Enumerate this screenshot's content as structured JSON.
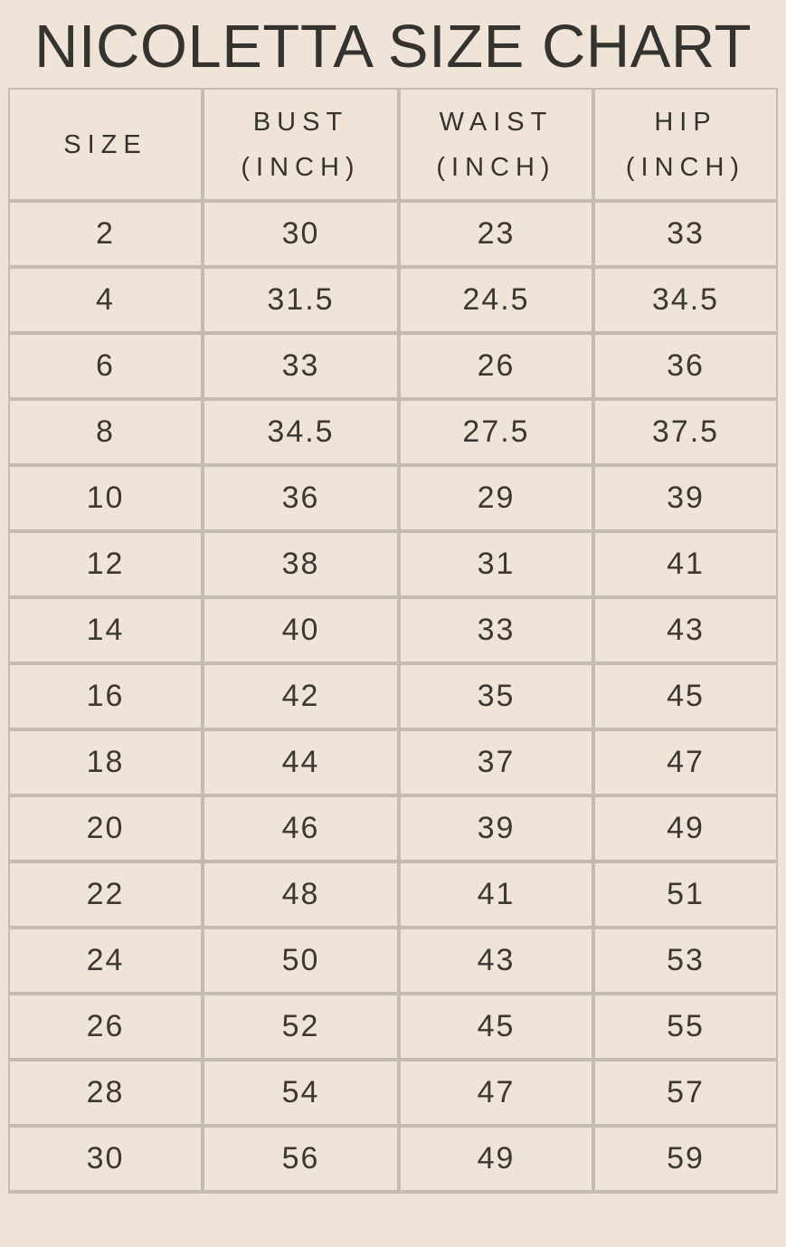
{
  "title": "NICOLETTA SIZE CHART",
  "colors": {
    "background": "#f0e4d8",
    "grid": "#c4bbb1",
    "text": "#3b3833",
    "title": "#35332f"
  },
  "size_chart": {
    "columns": [
      {
        "name": "size",
        "lines": [
          "SIZE"
        ]
      },
      {
        "name": "bust",
        "lines": [
          "BUST",
          "(INCH)"
        ]
      },
      {
        "name": "waist",
        "lines": [
          "WAIST",
          "(INCH)"
        ]
      },
      {
        "name": "hip",
        "lines": [
          "HIP",
          "(INCH)"
        ]
      }
    ],
    "rows": [
      [
        "2",
        "30",
        "23",
        "33"
      ],
      [
        "4",
        "31.5",
        "24.5",
        "34.5"
      ],
      [
        "6",
        "33",
        "26",
        "36"
      ],
      [
        "8",
        "34.5",
        "27.5",
        "37.5"
      ],
      [
        "10",
        "36",
        "29",
        "39"
      ],
      [
        "12",
        "38",
        "31",
        "41"
      ],
      [
        "14",
        "40",
        "33",
        "43"
      ],
      [
        "16",
        "42",
        "35",
        "45"
      ],
      [
        "18",
        "44",
        "37",
        "47"
      ],
      [
        "20",
        "46",
        "39",
        "49"
      ],
      [
        "22",
        "48",
        "41",
        "51"
      ],
      [
        "24",
        "50",
        "43",
        "53"
      ],
      [
        "26",
        "52",
        "45",
        "55"
      ],
      [
        "28",
        "54",
        "47",
        "57"
      ],
      [
        "30",
        "56",
        "49",
        "59"
      ]
    ]
  },
  "chart_data": {
    "type": "table",
    "title": "NICOLETTA SIZE CHART",
    "columns": [
      "SIZE",
      "BUST (INCH)",
      "WAIST (INCH)",
      "HIP (INCH)"
    ],
    "rows": [
      [
        2,
        30,
        23,
        33
      ],
      [
        4,
        31.5,
        24.5,
        34.5
      ],
      [
        6,
        33,
        26,
        36
      ],
      [
        8,
        34.5,
        27.5,
        37.5
      ],
      [
        10,
        36,
        29,
        39
      ],
      [
        12,
        38,
        31,
        41
      ],
      [
        14,
        40,
        33,
        43
      ],
      [
        16,
        42,
        35,
        45
      ],
      [
        18,
        44,
        37,
        47
      ],
      [
        20,
        46,
        39,
        49
      ],
      [
        22,
        48,
        41,
        51
      ],
      [
        24,
        50,
        43,
        53
      ],
      [
        26,
        52,
        45,
        55
      ],
      [
        28,
        54,
        47,
        57
      ],
      [
        30,
        56,
        49,
        59
      ]
    ]
  }
}
